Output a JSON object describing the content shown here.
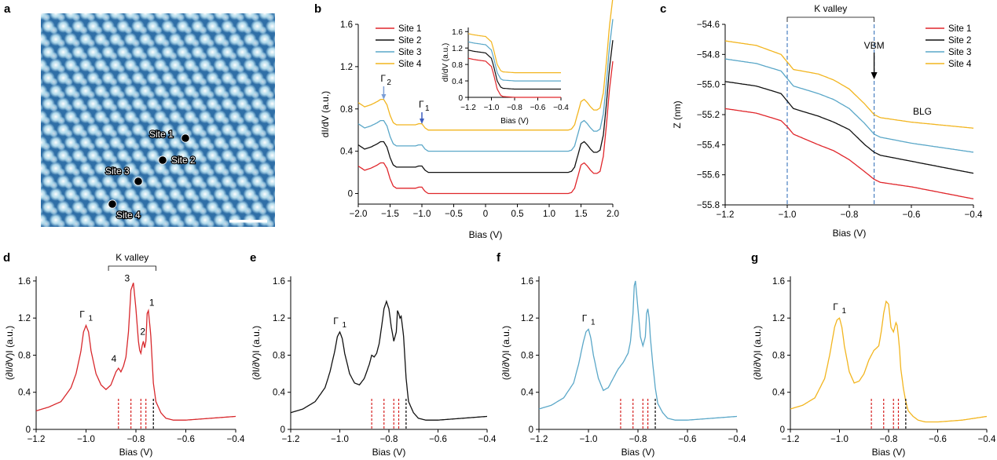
{
  "panels": {
    "a": {
      "letter": "a",
      "site_labels": [
        "Site 1",
        "Site 2",
        "Site 3",
        "Site 4"
      ],
      "colors": {
        "bg": "#2f6fa7",
        "spot": "#c8ecf7"
      }
    },
    "b": {
      "letter": "b"
    },
    "c": {
      "letter": "c",
      "bracket_label": "K valley",
      "vbm_label": "VBM",
      "blg_label": "BLG"
    },
    "d": {
      "letter": "d",
      "bracket_label": "K valley",
      "peak_labels": {
        "gamma": "Γ",
        "gamma_sub": "1",
        "p1": "1",
        "p2": "2",
        "p3": "3",
        "p4": "4"
      }
    },
    "e": {
      "letter": "e",
      "gamma": "Γ",
      "gamma_sub": "1"
    },
    "f": {
      "letter": "f",
      "gamma": "Γ",
      "gamma_sub": "1"
    },
    "g": {
      "letter": "g",
      "gamma": "Γ",
      "gamma_sub": "1"
    }
  },
  "chart_data": [
    {
      "panel": "b",
      "type": "line",
      "xlabel": "Bias (V)",
      "ylabel": "dI/dV (a.u.)",
      "xlim": [
        -2.0,
        2.0
      ],
      "ylim": [
        -0.1,
        1.6
      ],
      "xticks": [
        "−2.0",
        "−1.5",
        "−1.0",
        "−0.5",
        "0",
        "0.5",
        "1.0",
        "1.5",
        "2.0"
      ],
      "yticks": [
        "0",
        "0.4",
        "0.8",
        "1.2",
        "1.6"
      ],
      "legend": [
        "Site 1",
        "Site 2",
        "Site 3",
        "Site 4"
      ],
      "legend_position": "top-left",
      "annotations": [
        {
          "text": "Γ",
          "sub": "2",
          "x": -1.6
        },
        {
          "text": "Γ",
          "sub": "1",
          "x": -1.0
        }
      ],
      "series": [
        {
          "name": "Site 1",
          "color": "#e0262b",
          "offset": 0.0
        },
        {
          "name": "Site 2",
          "color": "#111111",
          "offset": 0.2
        },
        {
          "name": "Site 3",
          "color": "#5aa7c8",
          "offset": 0.4
        },
        {
          "name": "Site 4",
          "color": "#f2b51f",
          "offset": 0.6
        }
      ],
      "base_profile": {
        "x": [
          -2.0,
          -1.9,
          -1.8,
          -1.7,
          -1.65,
          -1.6,
          -1.55,
          -1.5,
          -1.45,
          -1.4,
          -1.3,
          -1.2,
          -1.1,
          -1.05,
          -1.0,
          -0.95,
          -0.9,
          -0.5,
          0,
          0.5,
          1.0,
          1.2,
          1.3,
          1.35,
          1.4,
          1.45,
          1.5,
          1.55,
          1.6,
          1.65,
          1.7,
          1.75,
          1.8,
          1.85,
          1.9,
          1.95,
          2.0
        ],
        "y": [
          0.26,
          0.22,
          0.24,
          0.27,
          0.29,
          0.29,
          0.24,
          0.14,
          0.07,
          0.05,
          0.05,
          0.05,
          0.05,
          0.06,
          0.06,
          0.02,
          0.0,
          0.0,
          0.0,
          0.0,
          0.0,
          0.0,
          0.0,
          0.01,
          0.05,
          0.16,
          0.27,
          0.29,
          0.26,
          0.22,
          0.19,
          0.19,
          0.21,
          0.35,
          0.65,
          1.0,
          1.25
        ]
      }
    },
    {
      "panel": "b-inset",
      "type": "line",
      "xlabel": "Bias (V)",
      "ylabel": "dI/dV (a.u.)",
      "xlim": [
        -1.2,
        -0.4
      ],
      "ylim": [
        0,
        1.7
      ],
      "xticks": [
        "−1.2",
        "−1.0",
        "−0.8",
        "−0.6",
        "−0.4"
      ],
      "yticks": [
        "0",
        "0.4",
        "0.8",
        "1.2",
        "1.6"
      ],
      "series": [
        {
          "name": "Site 1",
          "color": "#e0262b",
          "offset": 0.0
        },
        {
          "name": "Site 2",
          "color": "#111111",
          "offset": 0.2
        },
        {
          "name": "Site 3",
          "color": "#5aa7c8",
          "offset": 0.4
        },
        {
          "name": "Site 4",
          "color": "#f2b51f",
          "offset": 0.6
        }
      ],
      "base_profile": {
        "x": [
          -1.2,
          -1.15,
          -1.1,
          -1.05,
          -1.0,
          -0.98,
          -0.95,
          -0.92,
          -0.9,
          -0.85,
          -0.8,
          -0.6,
          -0.4
        ],
        "y": [
          0.95,
          0.92,
          0.9,
          0.88,
          0.75,
          0.55,
          0.2,
          0.05,
          0.02,
          0.01,
          0.0,
          0.0,
          0.0
        ]
      }
    },
    {
      "panel": "c",
      "type": "line",
      "xlabel": "Bias (V)",
      "ylabel": "Z (nm)",
      "xlim": [
        -1.2,
        -0.4
      ],
      "ylim": [
        -55.8,
        -54.6
      ],
      "xticks": [
        "−1.2",
        "−1.0",
        "−0.8",
        "−0.6",
        "−0.4"
      ],
      "yticks": [
        "−55.8",
        "−55.6",
        "−55.4",
        "−55.2",
        "−55.0",
        "−54.8",
        "−54.6"
      ],
      "legend": [
        "Site 1",
        "Site 2",
        "Site 3",
        "Site 4"
      ],
      "legend_position": "top-right",
      "vlines": [
        -1.0,
        -0.72
      ],
      "series": [
        {
          "name": "Site 1",
          "color": "#e0262b",
          "x": [
            -1.2,
            -1.1,
            -1.02,
            -1.0,
            -0.98,
            -0.9,
            -0.85,
            -0.8,
            -0.75,
            -0.72,
            -0.7,
            -0.6,
            -0.5,
            -0.4
          ],
          "y": [
            -55.16,
            -55.19,
            -55.24,
            -55.28,
            -55.33,
            -55.4,
            -55.44,
            -55.5,
            -55.58,
            -55.63,
            -55.65,
            -55.68,
            -55.72,
            -55.76
          ]
        },
        {
          "name": "Site 2",
          "color": "#111111",
          "x": [
            -1.2,
            -1.1,
            -1.02,
            -1.0,
            -0.98,
            -0.9,
            -0.85,
            -0.8,
            -0.75,
            -0.72,
            -0.7,
            -0.6,
            -0.5,
            -0.4
          ],
          "y": [
            -54.98,
            -55.01,
            -55.06,
            -55.11,
            -55.16,
            -55.21,
            -55.25,
            -55.3,
            -55.4,
            -55.45,
            -55.47,
            -55.51,
            -55.55,
            -55.59
          ]
        },
        {
          "name": "Site 3",
          "color": "#5aa7c8",
          "x": [
            -1.2,
            -1.1,
            -1.02,
            -1.0,
            -0.98,
            -0.9,
            -0.85,
            -0.8,
            -0.75,
            -0.72,
            -0.7,
            -0.6,
            -0.5,
            -0.4
          ],
          "y": [
            -54.83,
            -54.86,
            -54.91,
            -54.96,
            -55.01,
            -55.06,
            -55.1,
            -55.16,
            -55.26,
            -55.33,
            -55.35,
            -55.39,
            -55.42,
            -55.45
          ]
        },
        {
          "name": "Site 4",
          "color": "#f2b51f",
          "x": [
            -1.2,
            -1.1,
            -1.02,
            -1.0,
            -0.98,
            -0.9,
            -0.85,
            -0.8,
            -0.75,
            -0.72,
            -0.7,
            -0.6,
            -0.5,
            -0.4
          ],
          "y": [
            -54.71,
            -54.74,
            -54.8,
            -54.85,
            -54.9,
            -54.93,
            -54.97,
            -55.03,
            -55.13,
            -55.2,
            -55.22,
            -55.25,
            -55.27,
            -55.29
          ]
        }
      ]
    },
    {
      "panel": "d",
      "type": "line",
      "xlabel": "Bias (V)",
      "ylabel": "(∂I/∂V)I (a.u.)",
      "xlim": [
        -1.2,
        -0.4
      ],
      "ylim": [
        0,
        1.65
      ],
      "xticks": [
        "−1.2",
        "−1.0",
        "−0.8",
        "−0.6",
        "−0.4"
      ],
      "yticks": [
        "0",
        "0.4",
        "0.8",
        "1.2",
        "1.6"
      ],
      "color": "#d8282c",
      "red_dashes": [
        -0.87,
        -0.82,
        -0.78,
        -0.76
      ],
      "black_dash": -0.73,
      "x": [
        -1.2,
        -1.15,
        -1.1,
        -1.06,
        -1.04,
        -1.02,
        -1.01,
        -1.0,
        -0.99,
        -0.98,
        -0.96,
        -0.94,
        -0.92,
        -0.9,
        -0.88,
        -0.87,
        -0.86,
        -0.85,
        -0.84,
        -0.83,
        -0.82,
        -0.81,
        -0.8,
        -0.79,
        -0.785,
        -0.78,
        -0.775,
        -0.77,
        -0.765,
        -0.76,
        -0.755,
        -0.75,
        -0.74,
        -0.73,
        -0.72,
        -0.7,
        -0.68,
        -0.65,
        -0.6,
        -0.5,
        -0.4
      ],
      "y": [
        0.2,
        0.24,
        0.3,
        0.45,
        0.6,
        0.85,
        1.05,
        1.12,
        1.05,
        0.85,
        0.6,
        0.48,
        0.43,
        0.48,
        0.62,
        0.66,
        0.62,
        0.68,
        0.78,
        1.05,
        1.5,
        1.58,
        1.3,
        0.95,
        0.85,
        0.82,
        0.9,
        0.95,
        0.88,
        0.95,
        1.25,
        1.28,
        1.0,
        0.5,
        0.3,
        0.18,
        0.12,
        0.1,
        0.1,
        0.12,
        0.14
      ]
    },
    {
      "panel": "e",
      "type": "line",
      "xlabel": "Bias (V)",
      "ylabel": "(∂I/∂V)I (a.u.)",
      "xlim": [
        -1.2,
        -0.4
      ],
      "ylim": [
        0,
        1.65
      ],
      "xticks": [
        "−1.2",
        "−1.0",
        "−0.8",
        "−0.6",
        "−0.4"
      ],
      "yticks": [
        "0",
        "0.4",
        "0.8",
        "1.2",
        "1.6"
      ],
      "color": "#111111",
      "red_dashes": [
        -0.87,
        -0.82,
        -0.78,
        -0.76
      ],
      "black_dash": -0.73,
      "x": [
        -1.2,
        -1.15,
        -1.1,
        -1.06,
        -1.04,
        -1.02,
        -1.01,
        -1.0,
        -0.99,
        -0.98,
        -0.96,
        -0.94,
        -0.92,
        -0.9,
        -0.88,
        -0.87,
        -0.86,
        -0.85,
        -0.84,
        -0.83,
        -0.82,
        -0.81,
        -0.8,
        -0.79,
        -0.78,
        -0.77,
        -0.765,
        -0.76,
        -0.755,
        -0.75,
        -0.74,
        -0.73,
        -0.72,
        -0.7,
        -0.68,
        -0.65,
        -0.6,
        -0.5,
        -0.4
      ],
      "y": [
        0.18,
        0.22,
        0.3,
        0.45,
        0.62,
        0.85,
        1.0,
        1.05,
        0.98,
        0.82,
        0.6,
        0.5,
        0.48,
        0.55,
        0.7,
        0.8,
        0.78,
        0.82,
        0.92,
        1.1,
        1.3,
        1.38,
        1.3,
        1.1,
        0.95,
        1.05,
        1.28,
        1.25,
        1.2,
        1.22,
        1.0,
        0.55,
        0.3,
        0.18,
        0.12,
        0.1,
        0.1,
        0.12,
        0.14
      ]
    },
    {
      "panel": "f",
      "type": "line",
      "xlabel": "Bias (V)",
      "ylabel": "(∂I/∂V)I (a.u.)",
      "xlim": [
        -1.2,
        -0.4
      ],
      "ylim": [
        0,
        1.65
      ],
      "xticks": [
        "−1.2",
        "−1.0",
        "−0.8",
        "−0.6",
        "−0.4"
      ],
      "yticks": [
        "0",
        "0.4",
        "0.8",
        "1.2",
        "1.6"
      ],
      "color": "#5aa7c8",
      "red_dashes": [
        -0.87,
        -0.82,
        -0.78,
        -0.76
      ],
      "black_dash": -0.73,
      "x": [
        -1.2,
        -1.15,
        -1.1,
        -1.06,
        -1.04,
        -1.02,
        -1.01,
        -1.0,
        -0.99,
        -0.98,
        -0.96,
        -0.94,
        -0.92,
        -0.9,
        -0.88,
        -0.86,
        -0.84,
        -0.83,
        -0.82,
        -0.815,
        -0.81,
        -0.8,
        -0.79,
        -0.78,
        -0.77,
        -0.765,
        -0.76,
        -0.755,
        -0.75,
        -0.74,
        -0.73,
        -0.72,
        -0.7,
        -0.68,
        -0.65,
        -0.6,
        -0.5,
        -0.4
      ],
      "y": [
        0.22,
        0.26,
        0.34,
        0.5,
        0.7,
        0.95,
        1.05,
        1.08,
        0.98,
        0.8,
        0.55,
        0.42,
        0.45,
        0.55,
        0.65,
        0.72,
        0.82,
        0.95,
        1.25,
        1.55,
        1.6,
        1.3,
        1.0,
        0.9,
        1.0,
        1.25,
        1.3,
        1.2,
        1.0,
        0.7,
        0.45,
        0.28,
        0.18,
        0.12,
        0.1,
        0.1,
        0.12,
        0.14
      ]
    },
    {
      "panel": "g",
      "type": "line",
      "xlabel": "Bias (V)",
      "ylabel": "(∂I/∂V)I (a.u.)",
      "xlim": [
        -1.2,
        -0.4
      ],
      "ylim": [
        0,
        1.65
      ],
      "xticks": [
        "−1.2",
        "−1.0",
        "−0.8",
        "−0.6",
        "−0.4"
      ],
      "yticks": [
        "0",
        "0.4",
        "0.8",
        "1.2",
        "1.6"
      ],
      "color": "#f2b51f",
      "red_dashes": [
        -0.87,
        -0.82,
        -0.78,
        -0.76
      ],
      "black_dash": -0.73,
      "x": [
        -1.2,
        -1.15,
        -1.1,
        -1.06,
        -1.04,
        -1.02,
        -1.01,
        -1.0,
        -0.99,
        -0.98,
        -0.96,
        -0.94,
        -0.92,
        -0.9,
        -0.88,
        -0.86,
        -0.84,
        -0.83,
        -0.82,
        -0.81,
        -0.8,
        -0.79,
        -0.78,
        -0.77,
        -0.765,
        -0.76,
        -0.755,
        -0.75,
        -0.74,
        -0.73,
        -0.72,
        -0.7,
        -0.68,
        -0.65,
        -0.6,
        -0.5,
        -0.4
      ],
      "y": [
        0.22,
        0.26,
        0.34,
        0.55,
        0.8,
        1.1,
        1.18,
        1.2,
        1.1,
        0.9,
        0.62,
        0.5,
        0.52,
        0.6,
        0.75,
        0.85,
        0.9,
        1.05,
        1.25,
        1.38,
        1.35,
        1.1,
        1.05,
        1.15,
        1.12,
        1.0,
        0.85,
        0.65,
        0.45,
        0.3,
        0.2,
        0.14,
        0.1,
        0.08,
        0.08,
        0.1,
        0.14
      ]
    }
  ]
}
